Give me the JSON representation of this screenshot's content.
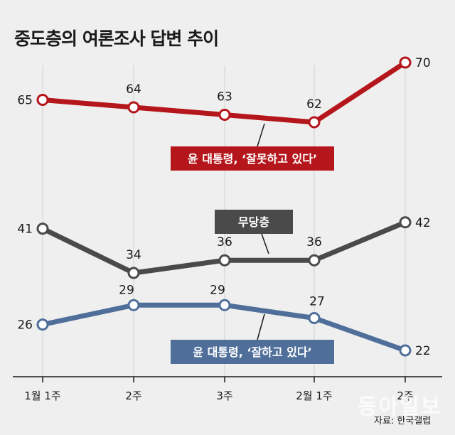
{
  "chart_data": {
    "type": "line",
    "title": "중도층의 여론조사 답변 추이",
    "categories": [
      "1월 1주",
      "2주",
      "3주",
      "2월 1주",
      "2주"
    ],
    "series": [
      {
        "name": "윤 대통령, ‘잘못하고 있다’",
        "values": [
          65,
          64,
          63,
          62,
          70
        ],
        "color": "#b5161b"
      },
      {
        "name": "무당층",
        "values": [
          41,
          34,
          36,
          36,
          42
        ],
        "color": "#4a4a4a"
      },
      {
        "name": "윤 대통령, ‘잘하고 있다’",
        "values": [
          26,
          29,
          29,
          27,
          22
        ],
        "color": "#4f6f9a"
      }
    ],
    "source": "자료: 한국갤럽",
    "watermark": "동아일보"
  }
}
